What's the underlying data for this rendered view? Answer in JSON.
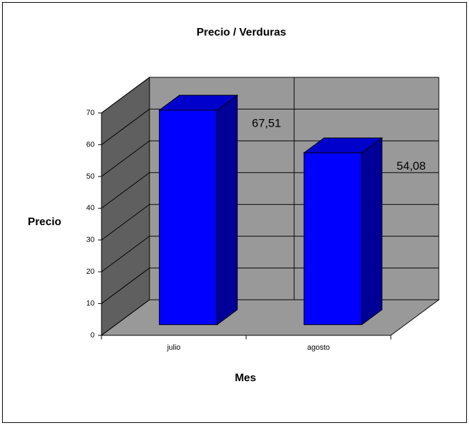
{
  "chart_data": {
    "type": "bar3d",
    "title": "Precio / Verduras",
    "x_label": "Mes",
    "y_label": "Precio",
    "categories": [
      "julio",
      "agosto"
    ],
    "values": [
      67.51,
      54.08
    ],
    "value_labels": [
      "67,51",
      "54,08"
    ],
    "color": "#0000ff",
    "ylim": [
      0,
      70
    ],
    "yticks": [
      0,
      10,
      20,
      30,
      40,
      50,
      60,
      70
    ],
    "grid": true
  }
}
